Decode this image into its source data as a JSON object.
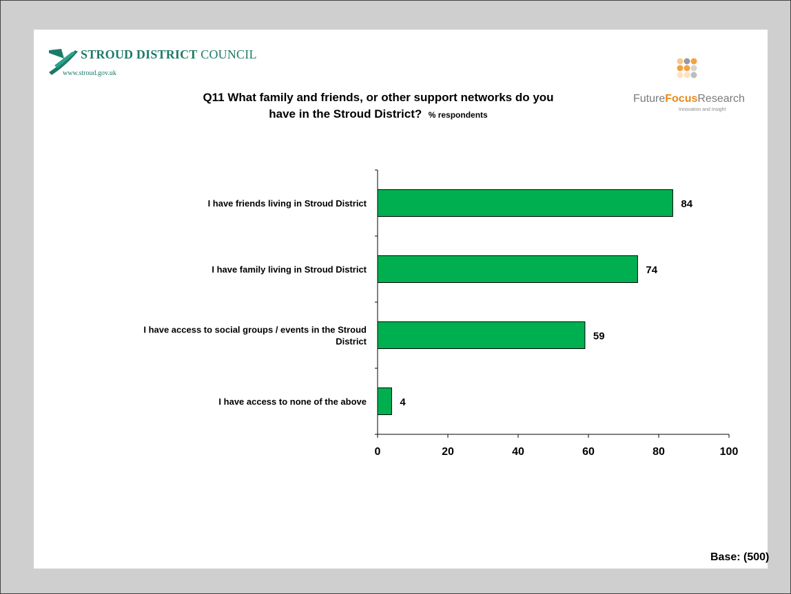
{
  "header": {
    "council_name_bold": "STROUD DISTRICT",
    "council_name_rest": "COUNCIL",
    "council_url": "www.stroud.gov.uk",
    "title_line1": "Q11 What family and friends, or other support networks do you",
    "title_line2": "have in the Stroud District?",
    "title_suffix": "% respondents",
    "brand_future": "Future",
    "brand_focus": "Focus",
    "brand_research": "Research",
    "brand_tagline": "Innovation and Insight"
  },
  "footer": {
    "base_label": "Base: (500)"
  },
  "colors": {
    "bar_fill": "#00b050",
    "council_green": "#1e7a68",
    "brand_orange": "#f5a142",
    "brand_gray": "#bdbdbd"
  },
  "chart_data": {
    "type": "bar",
    "orientation": "horizontal",
    "categories": [
      [
        "I have friends living in Stroud District"
      ],
      [
        "I have family living in Stroud District"
      ],
      [
        "I have access to social groups / events in the Stroud",
        "District"
      ],
      [
        "I have access to none of the above"
      ]
    ],
    "values": [
      84,
      74,
      59,
      4
    ],
    "xlim": [
      0,
      100
    ],
    "xticks": [
      0,
      20,
      40,
      60,
      80,
      100
    ],
    "grid": false,
    "legend": false
  }
}
